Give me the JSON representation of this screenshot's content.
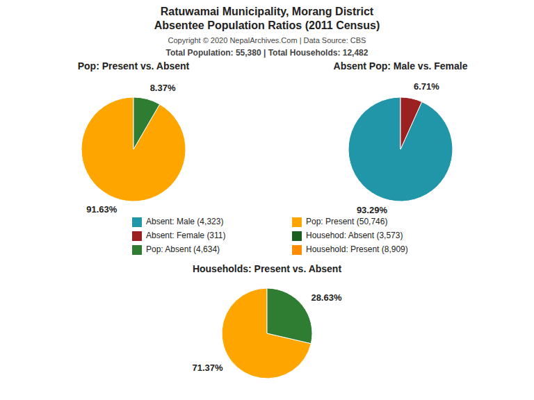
{
  "title": [
    "Ratuwamai Municipality, Morang District",
    "Absentee Population Ratios (2011 Census)"
  ],
  "annotations": [
    "Copyright © 2020 NepalArchives.Com | Data Source: CBS",
    "Total Population: 55,380 | Total Households: 12,482"
  ],
  "legend_items": [
    {
      "label": "Absent: Male (4,323)",
      "color": "#2196A8"
    },
    {
      "label": "Absent: Female (311)",
      "color": "#9B2020"
    },
    {
      "label": "Pop: Absent (4,634)",
      "color": "#2E7D32"
    },
    {
      "label": "Pop: Present (50,746)",
      "color": "#FFA500"
    },
    {
      "label": "Househod: Absent (3,573)",
      "color": "#1B5E20"
    },
    {
      "label": "Household: Present (8,909)",
      "color": "#FF8C00"
    }
  ],
  "chart_data": [
    {
      "type": "pie",
      "title": "Pop: Present vs. Absent",
      "values": [
        91.63,
        8.37
      ],
      "value_labels": [
        "91.63%",
        "8.37%"
      ],
      "colors": [
        "#FFA500",
        "#2E7D32"
      ],
      "data_labels": true
    },
    {
      "type": "pie",
      "title": "Absent Pop: Male vs. Female",
      "values": [
        93.29,
        6.71
      ],
      "value_labels": [
        "93.29%",
        "6.71%"
      ],
      "colors": [
        "#2196A8",
        "#9B2020"
      ],
      "data_labels": true
    },
    {
      "type": "pie",
      "title": "Households: Present vs. Absent",
      "values": [
        71.37,
        28.63
      ],
      "value_labels": [
        "71.37%",
        "28.63%"
      ],
      "colors": [
        "#FFA500",
        "#2E7D32"
      ],
      "data_labels": true
    }
  ]
}
